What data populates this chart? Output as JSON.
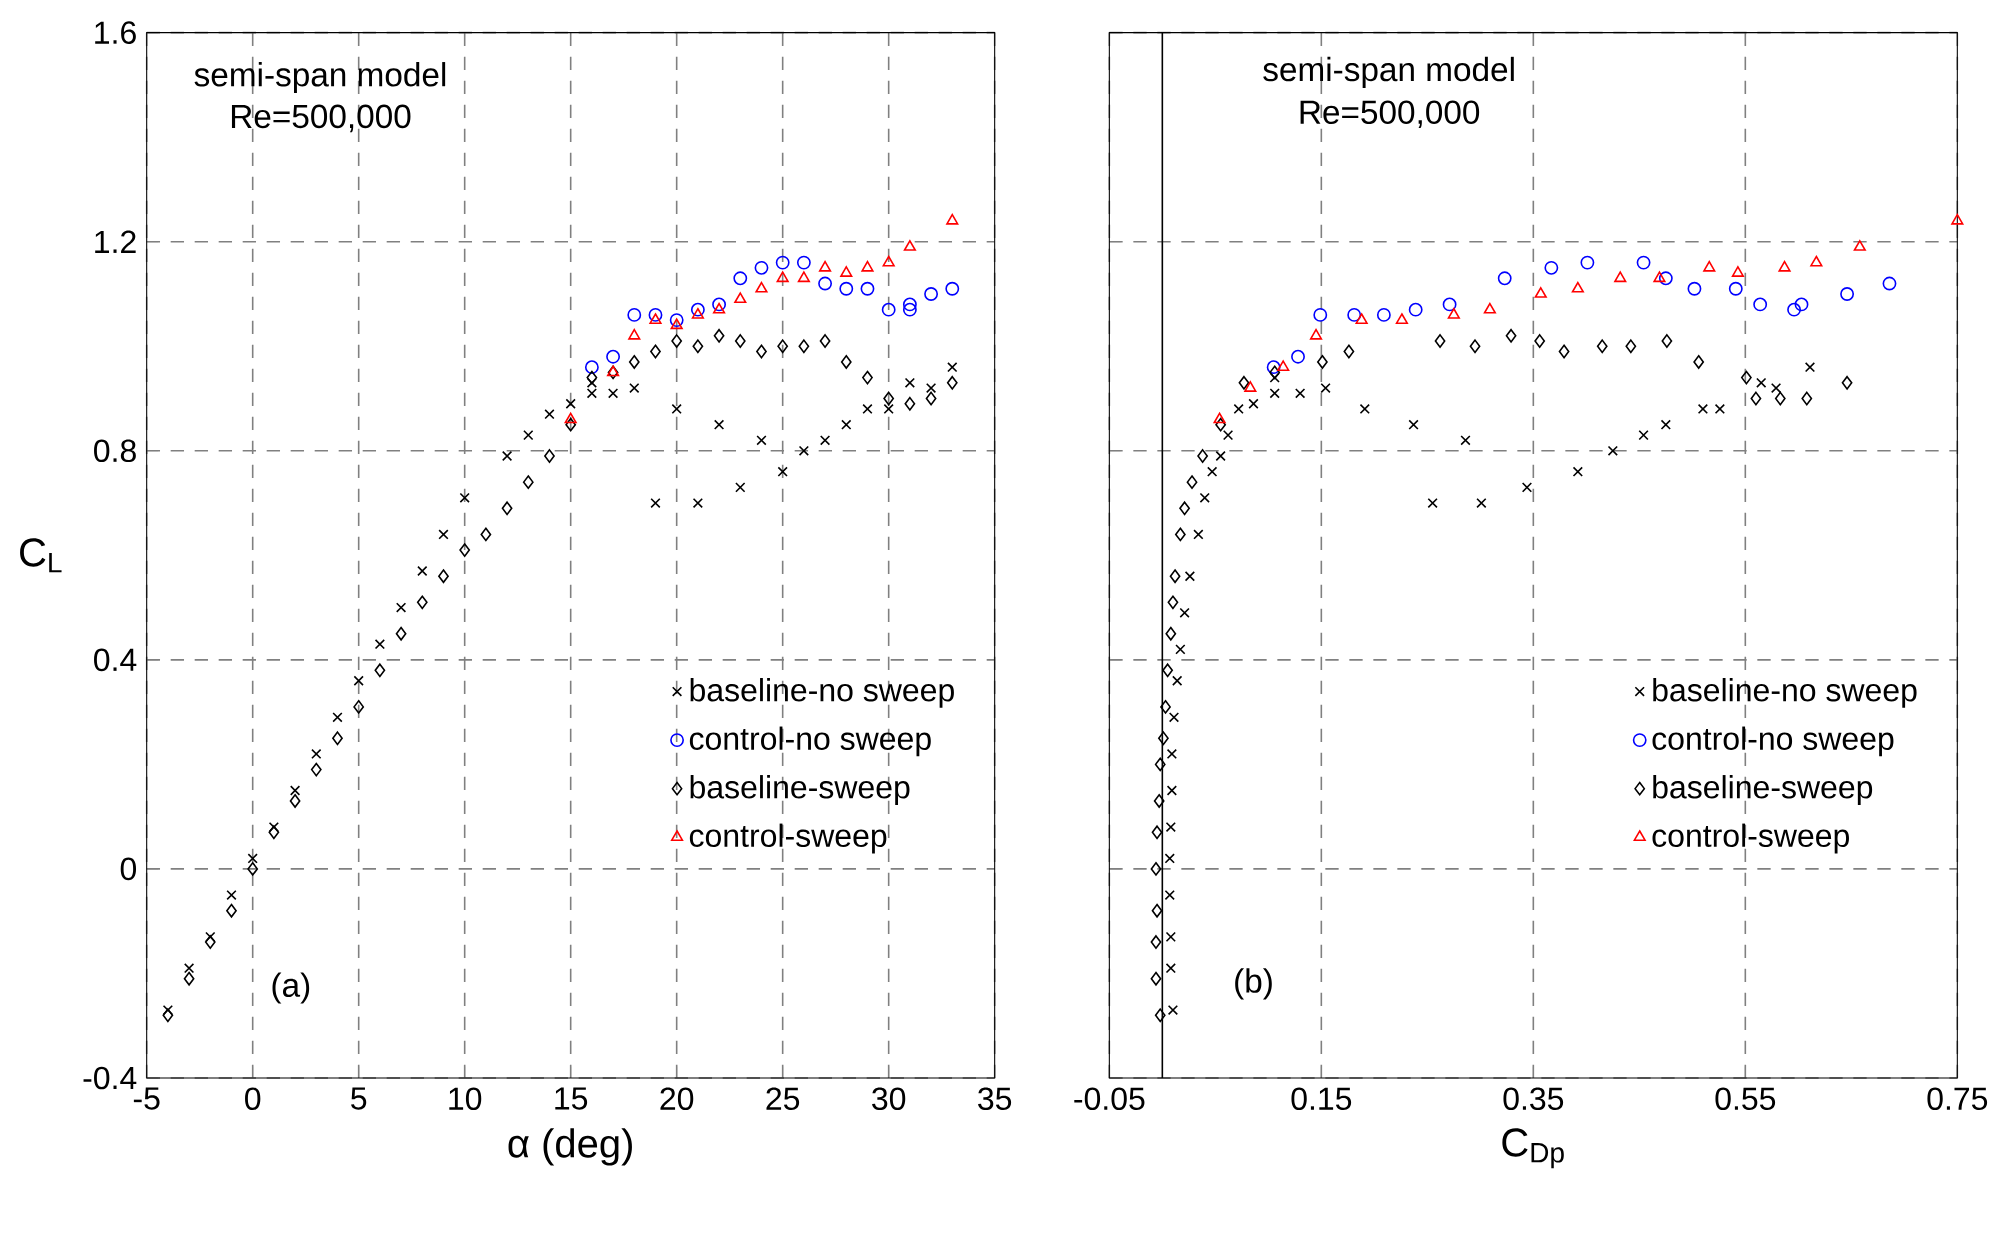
{
  "chart_data": [
    {
      "type": "scatter",
      "xlabel": "α (deg)",
      "ylabel": "C$_{L}$",
      "xlim": [
        -5,
        35
      ],
      "xticks": [
        -5,
        0,
        5,
        10,
        15,
        20,
        25,
        30,
        35
      ],
      "ylim": [
        -0.4,
        1.6
      ],
      "yticks": [
        -0.4,
        0,
        0.4,
        0.8,
        1.2,
        1.6
      ],
      "grid": true,
      "legend": "right",
      "annotations": [
        "semi-span model",
        "Re=500,000",
        "(a)"
      ],
      "series": [
        {
          "name": "baseline-no sweep",
          "color": "#000000",
          "marker": "cross",
          "x": [
            -4,
            -3,
            -2,
            -1,
            0,
            1,
            2,
            3,
            4,
            5,
            6,
            7,
            8,
            9,
            10,
            12,
            13,
            14,
            15,
            16,
            16,
            17,
            18,
            20,
            22,
            24,
            19,
            21,
            23,
            25,
            26,
            27,
            28,
            29,
            30,
            31,
            32,
            33
          ],
          "values": [
            -0.27,
            -0.19,
            -0.13,
            -0.05,
            0.02,
            0.08,
            0.15,
            0.22,
            0.29,
            0.36,
            0.43,
            0.5,
            0.57,
            0.64,
            0.71,
            0.79,
            0.83,
            0.87,
            0.89,
            0.93,
            0.91,
            0.91,
            0.92,
            0.88,
            0.85,
            0.82,
            0.7,
            0.7,
            0.73,
            0.76,
            0.8,
            0.82,
            0.85,
            0.88,
            0.88,
            0.93,
            0.92,
            0.96
          ]
        },
        {
          "name": "control-no sweep",
          "color": "#0000ff",
          "marker": "circle",
          "x": [
            16,
            17,
            18,
            19,
            20,
            21,
            22,
            23,
            24,
            25,
            26,
            27,
            28,
            29,
            30,
            31,
            31,
            32,
            33
          ],
          "values": [
            0.96,
            0.98,
            1.06,
            1.06,
            1.05,
            1.07,
            1.08,
            1.13,
            1.15,
            1.16,
            1.16,
            1.12,
            1.11,
            1.11,
            1.07,
            1.08,
            1.07,
            1.1,
            1.11
          ]
        },
        {
          "name": "baseline-sweep",
          "color": "#000000",
          "marker": "diamond",
          "x": [
            -4,
            -3,
            -2,
            -1,
            0,
            1,
            2,
            3,
            4,
            5,
            6,
            7,
            8,
            9,
            10,
            11,
            12,
            13,
            14,
            15,
            16,
            17,
            18,
            19,
            20,
            21,
            22,
            23,
            24,
            25,
            26,
            27,
            28,
            29,
            30,
            31,
            32,
            33
          ],
          "values": [
            -0.28,
            -0.21,
            -0.14,
            -0.08,
            0,
            0.07,
            0.13,
            0.19,
            0.25,
            0.31,
            0.38,
            0.45,
            0.51,
            0.56,
            0.61,
            0.64,
            0.69,
            0.74,
            0.79,
            0.85,
            0.94,
            0.95,
            0.97,
            0.99,
            1.01,
            1.0,
            1.02,
            1.01,
            0.99,
            1.0,
            1.0,
            1.01,
            0.97,
            0.94,
            0.9,
            0.89,
            0.9,
            0.93
          ]
        },
        {
          "name": "control-sweep",
          "color": "#ff0000",
          "marker": "triangle",
          "x": [
            15,
            17,
            18,
            19,
            20,
            21,
            22,
            23,
            24,
            25,
            26,
            27,
            28,
            29,
            30,
            31,
            33
          ],
          "values": [
            0.86,
            0.95,
            1.02,
            1.05,
            1.04,
            1.06,
            1.07,
            1.09,
            1.11,
            1.13,
            1.13,
            1.15,
            1.14,
            1.15,
            1.16,
            1.19,
            1.24
          ]
        }
      ]
    },
    {
      "type": "scatter",
      "xlabel": "C$_{Dp}$",
      "xlim": [
        -0.05,
        0.75
      ],
      "xticks": [
        -0.05,
        0.15,
        0.35,
        0.55,
        0.75
      ],
      "ylim": [
        -0.4,
        1.6
      ],
      "yticks": [
        -0.4,
        0,
        0.4,
        0.8,
        1.2,
        1.6
      ],
      "grid": true,
      "legend": "right",
      "tick_labels": "x",
      "ref_lines": [
        {
          "axis": "x",
          "value": 0,
          "color": "#000000",
          "line_style": "solid"
        }
      ],
      "annotations": [
        "semi-span model",
        "Re=500,000",
        "(b)"
      ],
      "series": [
        {
          "name": "baseline-no sweep",
          "color": "#000000",
          "marker": "cross",
          "x": [
            0.01,
            0.008,
            0.008,
            0.007,
            0.007,
            0.008,
            0.009,
            0.009,
            0.011,
            0.014,
            0.017,
            0.021,
            0.026,
            0.034,
            0.04,
            0.047,
            0.055,
            0.062,
            0.072,
            0.086,
            0.106,
            0.106,
            0.13,
            0.154,
            0.191,
            0.237,
            0.286,
            0.255,
            0.301,
            0.344,
            0.392,
            0.425,
            0.454,
            0.475,
            0.51,
            0.526,
            0.565,
            0.579,
            0.611
          ],
          "values": [
            -0.27,
            -0.19,
            -0.13,
            -0.05,
            0.02,
            0.08,
            0.15,
            0.22,
            0.29,
            0.36,
            0.42,
            0.49,
            0.56,
            0.64,
            0.71,
            0.76,
            0.79,
            0.83,
            0.88,
            0.89,
            0.91,
            0.94,
            0.91,
            0.92,
            0.88,
            0.85,
            0.82,
            0.7,
            0.7,
            0.73,
            0.76,
            0.8,
            0.83,
            0.85,
            0.88,
            0.88,
            0.93,
            0.92,
            0.96
          ]
        },
        {
          "name": "control-no sweep",
          "color": "#0000ff",
          "marker": "circle",
          "x": [
            0.105,
            0.128,
            0.149,
            0.181,
            0.209,
            0.239,
            0.271,
            0.323,
            0.367,
            0.401,
            0.454,
            0.475,
            0.502,
            0.541,
            0.564,
            0.596,
            0.603,
            0.646,
            0.686
          ],
          "values": [
            0.96,
            0.98,
            1.06,
            1.06,
            1.06,
            1.07,
            1.08,
            1.13,
            1.15,
            1.16,
            1.16,
            1.13,
            1.11,
            1.11,
            1.08,
            1.07,
            1.08,
            1.1,
            1.12
          ]
        },
        {
          "name": "baseline-sweep",
          "color": "#000000",
          "marker": "diamond",
          "x": [
            -0.002,
            -0.006,
            -0.006,
            -0.005,
            -0.006,
            -0.005,
            -0.003,
            -0.002,
            0.001,
            0.003,
            0.005,
            0.008,
            0.01,
            0.012,
            0.017,
            0.021,
            0.028,
            0.038,
            0.055,
            0.077,
            0.106,
            0.151,
            0.176,
            0.262,
            0.295,
            0.329,
            0.356,
            0.379,
            0.415,
            0.442,
            0.476,
            0.506,
            0.551,
            0.56,
            0.583,
            0.608,
            0.646
          ],
          "values": [
            -0.28,
            -0.21,
            -0.14,
            -0.08,
            0,
            0.07,
            0.13,
            0.2,
            0.25,
            0.31,
            0.38,
            0.45,
            0.51,
            0.56,
            0.64,
            0.69,
            0.74,
            0.79,
            0.85,
            0.93,
            0.95,
            0.97,
            0.99,
            1.01,
            1.0,
            1.02,
            1.01,
            0.99,
            1.0,
            1.0,
            1.01,
            0.97,
            0.94,
            0.9,
            0.9,
            0.9,
            0.93
          ]
        },
        {
          "name": "control-sweep",
          "color": "#ff0000",
          "marker": "triangle",
          "x": [
            0.054,
            0.083,
            0.114,
            0.145,
            0.188,
            0.226,
            0.275,
            0.309,
            0.357,
            0.392,
            0.432,
            0.469,
            0.516,
            0.543,
            0.587,
            0.617,
            0.658,
            0.75
          ],
          "values": [
            0.86,
            0.92,
            0.96,
            1.02,
            1.05,
            1.05,
            1.06,
            1.07,
            1.1,
            1.11,
            1.13,
            1.13,
            1.15,
            1.14,
            1.15,
            1.16,
            1.19,
            1.24
          ]
        }
      ]
    }
  ]
}
